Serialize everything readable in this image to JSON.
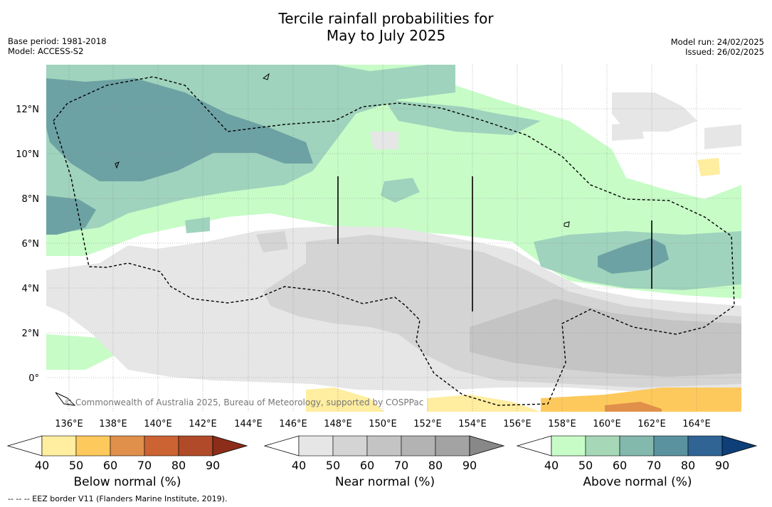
{
  "title_line1": "Tercile rainfall probabilities for",
  "title_line2": "May to July 2025",
  "base_period": "Base period: 1981-2018",
  "model": "Model: ACCESS-S2",
  "model_run": "Model run: 24/02/2025",
  "issued": "Issued: 26/02/2025",
  "copyright": "© Commonwealth of Australia 2025, Bureau of Meteorology, supported by COSPPac",
  "footer_note": "--  --  -- EEZ border V11 (Flanders Marine Institute, 2019).",
  "map": {
    "lon_ticks": [
      "136°E",
      "138°E",
      "140°E",
      "142°E",
      "144°E",
      "146°E",
      "148°E",
      "150°E",
      "152°E",
      "154°E",
      "156°E",
      "158°E",
      "160°E",
      "162°E",
      "164°E"
    ],
    "lat_ticks": [
      "12°N",
      "10°N",
      "8°N",
      "6°N",
      "4°N",
      "2°N",
      "0°"
    ]
  },
  "colorbars": {
    "below": {
      "label": "Below normal (%)",
      "ticks": [
        "40",
        "50",
        "60",
        "70",
        "80",
        "90"
      ],
      "colors": [
        "#ffeda0",
        "#fec95c",
        "#e0904a",
        "#cc6333",
        "#b04a28",
        "#8c2d1a"
      ]
    },
    "near": {
      "label": "Near normal (%)",
      "ticks": [
        "40",
        "50",
        "60",
        "70",
        "80",
        "90"
      ],
      "colors": [
        "#e6e6e6",
        "#d4d4d4",
        "#c4c4c4",
        "#b3b3b3",
        "#a3a3a3",
        "#888888"
      ]
    },
    "above": {
      "label": "Above normal (%)",
      "ticks": [
        "40",
        "50",
        "60",
        "70",
        "80",
        "90"
      ],
      "colors": [
        "#c7fcc7",
        "#a6d8b8",
        "#83b8ad",
        "#5b92a0",
        "#2f6495",
        "#0e3f78"
      ]
    }
  }
}
